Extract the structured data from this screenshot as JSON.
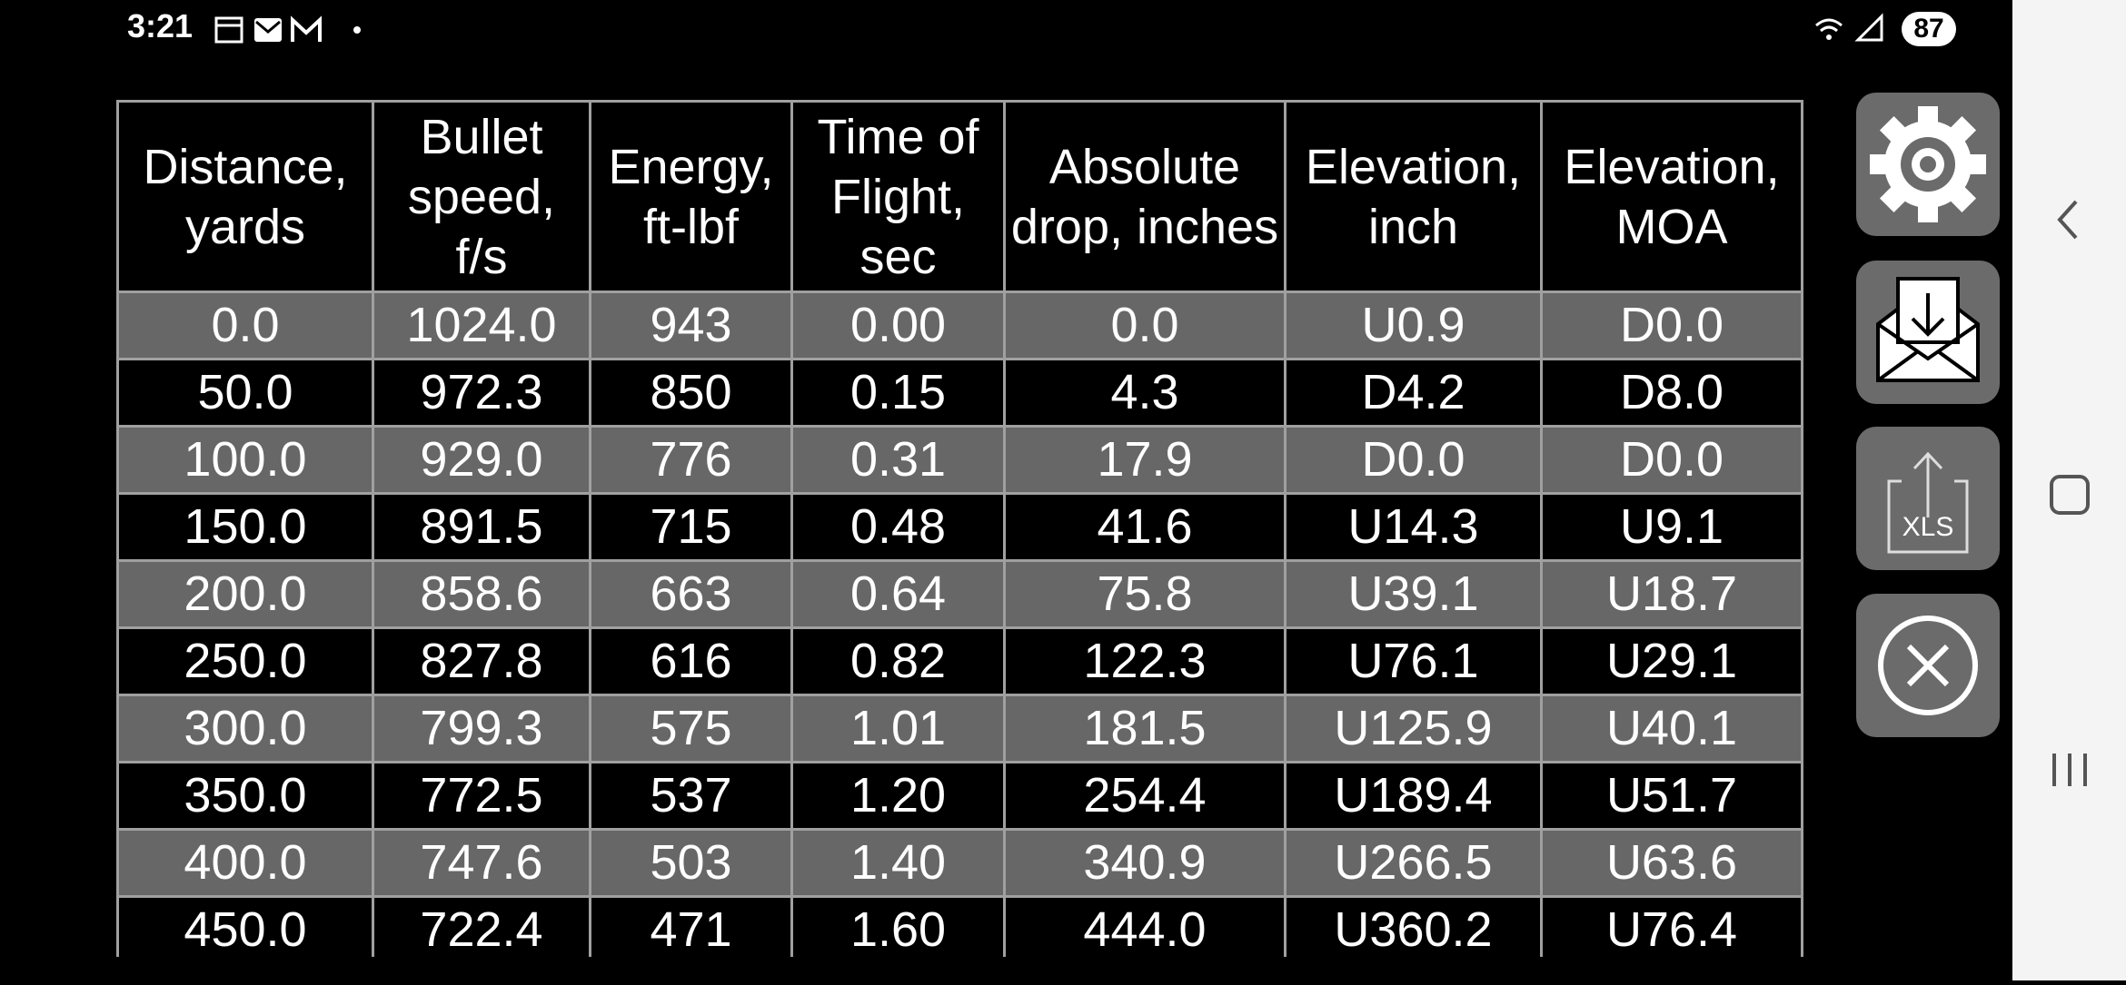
{
  "status_bar": {
    "time": "3:21",
    "battery": "87"
  },
  "table": {
    "headers": [
      "Distance, yards",
      "Bullet speed, f/s",
      "Energy, ft-lbf",
      "Time of Flight, sec",
      "Absolute drop, inches",
      "Elevation, inch",
      "Elevation, MOA"
    ],
    "rows": [
      [
        "0.0",
        "1024.0",
        "943",
        "0.00",
        "0.0",
        "U0.9",
        "D0.0"
      ],
      [
        "50.0",
        "972.3",
        "850",
        "0.15",
        "4.3",
        "D4.2",
        "D8.0"
      ],
      [
        "100.0",
        "929.0",
        "776",
        "0.31",
        "17.9",
        "D0.0",
        "D0.0"
      ],
      [
        "150.0",
        "891.5",
        "715",
        "0.48",
        "41.6",
        "U14.3",
        "U9.1"
      ],
      [
        "200.0",
        "858.6",
        "663",
        "0.64",
        "75.8",
        "U39.1",
        "U18.7"
      ],
      [
        "250.0",
        "827.8",
        "616",
        "0.82",
        "122.3",
        "U76.1",
        "U29.1"
      ],
      [
        "300.0",
        "799.3",
        "575",
        "1.01",
        "181.5",
        "U125.9",
        "U40.1"
      ],
      [
        "350.0",
        "772.5",
        "537",
        "1.20",
        "254.4",
        "U189.4",
        "U51.7"
      ],
      [
        "400.0",
        "747.6",
        "503",
        "1.40",
        "340.9",
        "U266.5",
        "U63.6"
      ],
      [
        "450.0",
        "722.4",
        "471",
        "1.60",
        "444.0",
        "U360.2",
        "U76.4"
      ]
    ]
  },
  "buttons": {
    "export_label": "XLS"
  }
}
